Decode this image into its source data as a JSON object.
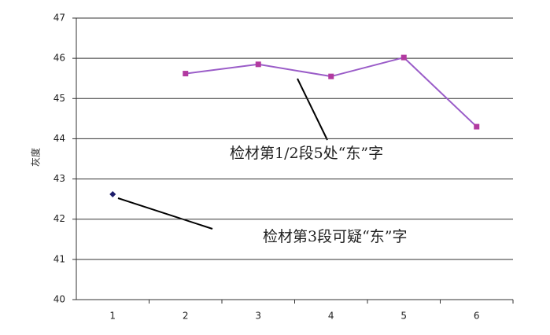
{
  "chart_data": {
    "type": "line",
    "y_label": "灰度",
    "categories": [
      "1",
      "2",
      "3",
      "4",
      "5",
      "6"
    ],
    "series": [
      {
        "color": "#1c1c6a",
        "marker": "diamond",
        "values": [
          42.62,
          null,
          null,
          null,
          null,
          null
        ]
      },
      {
        "color": "#b23aa0",
        "line_color": "#9a5cc8",
        "marker": "square",
        "values": [
          null,
          45.62,
          45.85,
          45.55,
          46.02,
          44.3
        ]
      }
    ],
    "ylim": [
      40,
      47
    ],
    "yticks": [
      40,
      41,
      42,
      43,
      44,
      45,
      46,
      47
    ],
    "grid": true,
    "annotations": [
      {
        "text": "检材第1/2段5处“东”字"
      },
      {
        "text": "检材第3段可疑“东”字"
      }
    ]
  }
}
